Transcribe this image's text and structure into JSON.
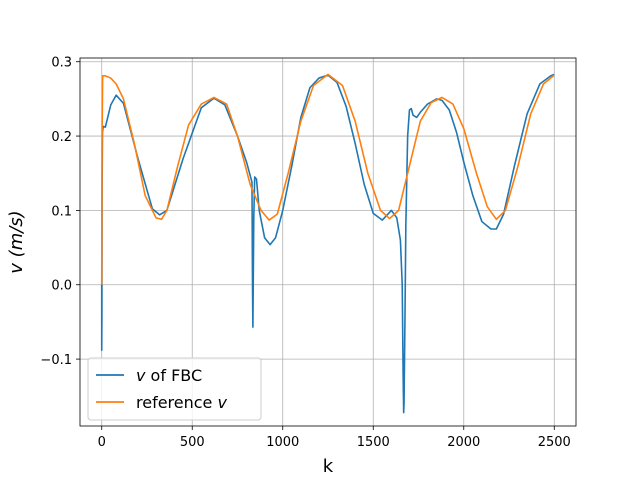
{
  "chart_data": {
    "type": "line",
    "title": "",
    "xlabel": "k",
    "ylabel": "v (m/s)",
    "xlim": [
      -120,
      2620
    ],
    "ylim": [
      -0.19,
      0.305
    ],
    "x_ticks": [
      0,
      500,
      1000,
      1500,
      2000,
      2500
    ],
    "x_tick_labels": [
      "0",
      "500",
      "1000",
      "1500",
      "2000",
      "2500"
    ],
    "y_ticks": [
      -0.1,
      0.0,
      0.1,
      0.2,
      0.3
    ],
    "y_tick_labels": [
      "−0.1",
      "0.0",
      "0.1",
      "0.2",
      "0.3"
    ],
    "grid": true,
    "legend_position": "lower-left",
    "series": [
      {
        "name": "v of FBC",
        "legend_prefix": "v",
        "legend_suffix": " of FBC",
        "color": "#1f77b4",
        "x": [
          0,
          0,
          1,
          2,
          4,
          8,
          20,
          50,
          80,
          120,
          200,
          280,
          320,
          360,
          450,
          550,
          620,
          680,
          750,
          800,
          830,
          833,
          835,
          840,
          845,
          855,
          870,
          900,
          930,
          960,
          1000,
          1050,
          1100,
          1150,
          1200,
          1250,
          1300,
          1350,
          1400,
          1450,
          1500,
          1550,
          1600,
          1630,
          1650,
          1660,
          1665,
          1668,
          1670,
          1675,
          1680,
          1690,
          1700,
          1710,
          1720,
          1740,
          1760,
          1800,
          1850,
          1880,
          1920,
          1960,
          2000,
          2050,
          2100,
          2150,
          2180,
          2220,
          2280,
          2350,
          2420,
          2480,
          2500
        ],
        "y": [
          0.0,
          -0.088,
          -0.04,
          0.12,
          0.205,
          0.213,
          0.212,
          0.242,
          0.255,
          0.244,
          0.17,
          0.102,
          0.094,
          0.1,
          0.17,
          0.238,
          0.251,
          0.242,
          0.2,
          0.165,
          0.138,
          0.0,
          -0.057,
          0.09,
          0.145,
          0.142,
          0.1,
          0.063,
          0.054,
          0.063,
          0.1,
          0.16,
          0.225,
          0.265,
          0.278,
          0.282,
          0.272,
          0.24,
          0.19,
          0.135,
          0.096,
          0.087,
          0.1,
          0.09,
          0.06,
          0.0,
          -0.12,
          -0.172,
          -0.16,
          -0.05,
          0.08,
          0.2,
          0.235,
          0.237,
          0.228,
          0.225,
          0.232,
          0.243,
          0.25,
          0.248,
          0.235,
          0.205,
          0.165,
          0.12,
          0.085,
          0.075,
          0.075,
          0.095,
          0.16,
          0.23,
          0.27,
          0.281,
          0.283
        ]
      },
      {
        "name": "reference v",
        "legend_prefix": "reference ",
        "legend_suffix": "v",
        "color": "#ff7f0e",
        "x": [
          0,
          2,
          5,
          20,
          50,
          80,
          120,
          180,
          240,
          300,
          330,
          360,
          420,
          480,
          550,
          620,
          690,
          750,
          820,
          880,
          925,
          970,
          1030,
          1100,
          1170,
          1250,
          1330,
          1400,
          1470,
          1540,
          1590,
          1640,
          1700,
          1760,
          1820,
          1880,
          1940,
          2000,
          2070,
          2130,
          2180,
          2230,
          2300,
          2370,
          2440,
          2500
        ],
        "y": [
          0.0,
          0.2,
          0.281,
          0.281,
          0.278,
          0.27,
          0.25,
          0.19,
          0.12,
          0.09,
          0.088,
          0.1,
          0.16,
          0.215,
          0.243,
          0.252,
          0.243,
          0.2,
          0.135,
          0.1,
          0.087,
          0.095,
          0.15,
          0.22,
          0.268,
          0.283,
          0.268,
          0.22,
          0.15,
          0.1,
          0.089,
          0.1,
          0.16,
          0.22,
          0.245,
          0.252,
          0.243,
          0.21,
          0.15,
          0.105,
          0.088,
          0.1,
          0.16,
          0.23,
          0.27,
          0.282
        ]
      }
    ]
  }
}
